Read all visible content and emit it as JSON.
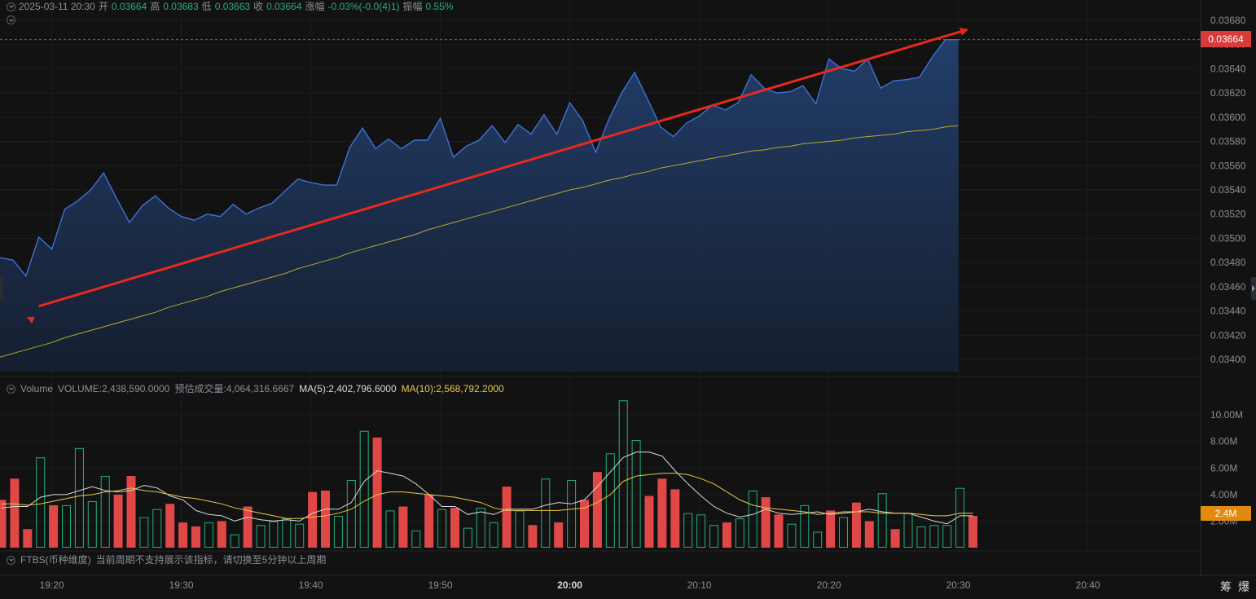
{
  "header": {
    "datetime": "2025-03-11 20:30",
    "open_label": "开",
    "open": "0.03664",
    "high_label": "高",
    "high": "0.03683",
    "low_label": "低",
    "low": "0.03663",
    "close_label": "收",
    "close": "0.03664",
    "change_label": "涨幅",
    "change": "-0.03%(-0.0(4)1)",
    "amplitude_label": "振幅",
    "amplitude": "0.55%"
  },
  "volume_header": {
    "name": "Volume",
    "volume": "VOLUME:2,438,590.0000",
    "estimate": "预估成交量:4,064,316.6667",
    "ma5": "MA(5):2,402,796.6000",
    "ma10": "MA(10):2,568,792.2000"
  },
  "ftbs": {
    "name": "FTBS(币种维度)",
    "message": "当前周期不支持展示该指标，请切换至5分钟以上周期"
  },
  "price_tag": "0.03664",
  "volume_tag": "2.4M",
  "corner_labels": [
    "筹",
    "爆"
  ],
  "colors": {
    "price_line": "#3f72d6",
    "ma_line": "#b8a830",
    "trend_arrow": "#e8281e",
    "up_bar": "#e04848",
    "down_bar": "#26b07a",
    "price_tag_bg": "#d93a3a",
    "volume_tag_bg": "#e08a0e",
    "vol_ma5": "#d9d9d9",
    "vol_ma10": "#e6c84a"
  },
  "chart_data": [
    {
      "type": "area",
      "ylim": [
        0.0339,
        0.0369
      ],
      "y_ticks": [
        "0.03680",
        "0.03660",
        "0.03640",
        "0.03620",
        "0.03600",
        "0.03580",
        "0.03560",
        "0.03540",
        "0.03520",
        "0.03500",
        "0.03480",
        "0.03460",
        "0.03440",
        "0.03420",
        "0.03400"
      ],
      "x_ticks": [
        "19:20",
        "19:30",
        "19:40",
        "19:50",
        "20:00",
        "20:10",
        "20:20",
        "20:30",
        "20:40"
      ],
      "x_tick_bold": "20:00",
      "last_price": 0.03664,
      "series": [
        {
          "role": "price",
          "values": [
            0.03484,
            0.03482,
            0.03469,
            0.03501,
            0.03491,
            0.03524,
            0.03531,
            0.0354,
            0.03554,
            0.03533,
            0.03513,
            0.03527,
            0.03535,
            0.03525,
            0.03518,
            0.03515,
            0.0352,
            0.03518,
            0.03528,
            0.0352,
            0.03525,
            0.03529,
            0.03539,
            0.03549,
            0.03546,
            0.03544,
            0.03544,
            0.03575,
            0.03591,
            0.03574,
            0.03582,
            0.03574,
            0.03581,
            0.03581,
            0.03599,
            0.03567,
            0.03576,
            0.03581,
            0.03593,
            0.03579,
            0.03594,
            0.03586,
            0.03602,
            0.03586,
            0.03612,
            0.03597,
            0.03571,
            0.03598,
            0.0362,
            0.03637,
            0.03615,
            0.03592,
            0.03584,
            0.03595,
            0.03601,
            0.0361,
            0.03606,
            0.03612,
            0.03635,
            0.03624,
            0.0362,
            0.03621,
            0.03626,
            0.03611,
            0.03648,
            0.0364,
            0.03638,
            0.03648,
            0.03624,
            0.0363,
            0.03631,
            0.03633,
            0.0365,
            0.03664,
            0.03664
          ]
        },
        {
          "role": "moving-average",
          "values": [
            0.03402,
            0.03405,
            0.03408,
            0.03411,
            0.03414,
            0.03418,
            0.03421,
            0.03424,
            0.03427,
            0.0343,
            0.03433,
            0.03436,
            0.03439,
            0.03443,
            0.03446,
            0.03449,
            0.03452,
            0.03456,
            0.03459,
            0.03462,
            0.03465,
            0.03468,
            0.03471,
            0.03475,
            0.03478,
            0.03481,
            0.03484,
            0.03488,
            0.03491,
            0.03494,
            0.03497,
            0.035,
            0.03503,
            0.03507,
            0.0351,
            0.03513,
            0.03516,
            0.03519,
            0.03522,
            0.03525,
            0.03528,
            0.03531,
            0.03534,
            0.03537,
            0.0354,
            0.03542,
            0.03545,
            0.03548,
            0.0355,
            0.03553,
            0.03555,
            0.03558,
            0.0356,
            0.03562,
            0.03564,
            0.03566,
            0.03568,
            0.0357,
            0.03572,
            0.03573,
            0.03575,
            0.03576,
            0.03578,
            0.03579,
            0.0358,
            0.03581,
            0.03583,
            0.03584,
            0.03585,
            0.03586,
            0.03588,
            0.03589,
            0.0359,
            0.03592,
            0.03593
          ]
        }
      ],
      "trend_arrow": {
        "from": [
          3,
          0.03444
        ],
        "to": [
          74.6,
          0.03672
        ]
      }
    },
    {
      "type": "bar",
      "ylim": [
        0,
        11300000
      ],
      "y_ticks": [
        "10.00M",
        "8.00M",
        "6.00M",
        "4.00M",
        "2.00M"
      ],
      "bars": [
        {
          "v": 3.6,
          "up": true
        },
        {
          "v": 5.2,
          "up": true
        },
        {
          "v": 1.4,
          "up": true
        },
        {
          "v": 6.8,
          "up": false
        },
        {
          "v": 3.2,
          "up": true
        },
        {
          "v": 3.2,
          "up": false
        },
        {
          "v": 7.5,
          "up": false
        },
        {
          "v": 3.5,
          "up": false
        },
        {
          "v": 5.4,
          "up": false
        },
        {
          "v": 4.0,
          "up": true
        },
        {
          "v": 5.4,
          "up": true
        },
        {
          "v": 2.3,
          "up": false
        },
        {
          "v": 2.9,
          "up": false
        },
        {
          "v": 3.3,
          "up": true
        },
        {
          "v": 1.9,
          "up": true
        },
        {
          "v": 1.6,
          "up": true
        },
        {
          "v": 1.9,
          "up": false
        },
        {
          "v": 2.0,
          "up": true
        },
        {
          "v": 1.0,
          "up": false
        },
        {
          "v": 3.1,
          "up": true
        },
        {
          "v": 1.7,
          "up": false
        },
        {
          "v": 2.0,
          "up": false
        },
        {
          "v": 2.2,
          "up": false
        },
        {
          "v": 1.8,
          "up": false
        },
        {
          "v": 4.2,
          "up": true
        },
        {
          "v": 4.3,
          "up": true
        },
        {
          "v": 2.4,
          "up": false
        },
        {
          "v": 5.1,
          "up": false
        },
        {
          "v": 8.8,
          "up": false
        },
        {
          "v": 8.3,
          "up": true
        },
        {
          "v": 2.8,
          "up": false
        },
        {
          "v": 3.1,
          "up": true
        },
        {
          "v": 1.3,
          "up": false
        },
        {
          "v": 4.0,
          "up": true
        },
        {
          "v": 2.9,
          "up": false
        },
        {
          "v": 3.0,
          "up": true
        },
        {
          "v": 1.5,
          "up": false
        },
        {
          "v": 3.0,
          "up": false
        },
        {
          "v": 1.9,
          "up": false
        },
        {
          "v": 4.6,
          "up": true
        },
        {
          "v": 2.8,
          "up": false
        },
        {
          "v": 1.7,
          "up": true
        },
        {
          "v": 5.2,
          "up": false
        },
        {
          "v": 1.9,
          "up": true
        },
        {
          "v": 5.1,
          "up": false
        },
        {
          "v": 3.6,
          "up": true
        },
        {
          "v": 5.7,
          "up": true
        },
        {
          "v": 7.1,
          "up": false
        },
        {
          "v": 11.1,
          "up": false
        },
        {
          "v": 8.1,
          "up": false
        },
        {
          "v": 3.9,
          "up": true
        },
        {
          "v": 5.2,
          "up": true
        },
        {
          "v": 4.4,
          "up": true
        },
        {
          "v": 2.6,
          "up": false
        },
        {
          "v": 2.5,
          "up": false
        },
        {
          "v": 1.7,
          "up": false
        },
        {
          "v": 1.9,
          "up": true
        },
        {
          "v": 2.2,
          "up": false
        },
        {
          "v": 4.3,
          "up": false
        },
        {
          "v": 3.8,
          "up": true
        },
        {
          "v": 2.5,
          "up": true
        },
        {
          "v": 1.8,
          "up": false
        },
        {
          "v": 3.2,
          "up": false
        },
        {
          "v": 1.2,
          "up": false
        },
        {
          "v": 2.8,
          "up": true
        },
        {
          "v": 2.3,
          "up": false
        },
        {
          "v": 3.4,
          "up": true
        },
        {
          "v": 2.0,
          "up": true
        },
        {
          "v": 4.1,
          "up": false
        },
        {
          "v": 1.4,
          "up": true
        },
        {
          "v": 2.6,
          "up": false
        },
        {
          "v": 1.6,
          "up": false
        },
        {
          "v": 1.7,
          "up": false
        },
        {
          "v": 1.7,
          "up": false
        },
        {
          "v": 4.5,
          "up": false
        },
        {
          "v": 2.4,
          "up": true
        }
      ],
      "ma5": [
        3.0,
        3.1,
        3.1,
        3.8,
        4.0,
        4.0,
        4.3,
        4.6,
        4.3,
        4.2,
        4.3,
        4.7,
        4.5,
        3.9,
        3.6,
        2.8,
        2.5,
        2.4,
        2.0,
        2.3,
        2.1,
        2.0,
        2.1,
        2.0,
        2.6,
        2.9,
        2.9,
        3.4,
        5.0,
        5.8,
        5.6,
        5.4,
        4.8,
        4.0,
        3.1,
        3.1,
        2.5,
        2.7,
        2.5,
        2.9,
        2.9,
        2.9,
        3.2,
        3.4,
        3.3,
        3.6,
        4.6,
        5.7,
        6.8,
        7.2,
        7.2,
        6.9,
        5.8,
        4.8,
        3.9,
        3.1,
        2.6,
        2.3,
        2.5,
        2.9,
        2.6,
        2.5,
        2.6,
        2.7,
        2.5,
        2.6,
        2.7,
        2.9,
        2.7,
        2.6,
        2.6,
        2.3,
        2.0,
        1.8,
        2.4,
        2.4
      ],
      "ma10": [
        3.3,
        3.3,
        3.2,
        3.3,
        3.5,
        3.7,
        3.9,
        4.0,
        4.2,
        4.3,
        4.5,
        4.3,
        4.2,
        4.0,
        3.8,
        3.7,
        3.5,
        3.3,
        3.0,
        2.8,
        2.6,
        2.4,
        2.2,
        2.2,
        2.3,
        2.4,
        2.6,
        2.9,
        3.5,
        4.0,
        4.2,
        4.2,
        4.1,
        4.0,
        3.9,
        3.8,
        3.6,
        3.4,
        3.0,
        2.8,
        2.8,
        2.8,
        2.8,
        2.8,
        2.9,
        3.0,
        3.4,
        4.0,
        5.0,
        5.4,
        5.5,
        5.6,
        5.6,
        5.5,
        5.2,
        4.8,
        4.2,
        3.6,
        3.2,
        3.0,
        2.9,
        2.8,
        2.7,
        2.5,
        2.6,
        2.7,
        2.7,
        2.7,
        2.6,
        2.6,
        2.6,
        2.5,
        2.4,
        2.4,
        2.6,
        2.6
      ]
    }
  ]
}
